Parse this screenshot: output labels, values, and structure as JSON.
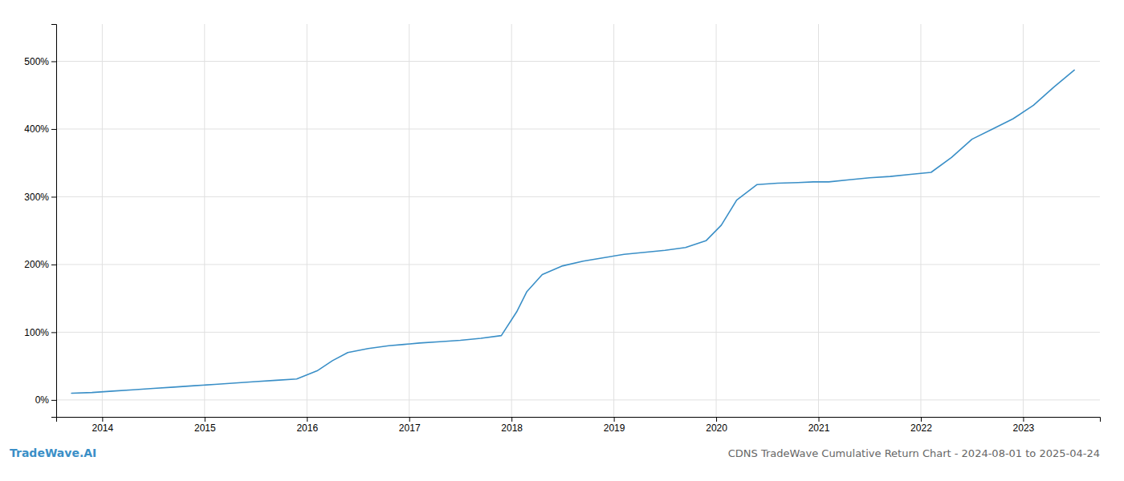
{
  "chart_data": {
    "type": "line",
    "title": "CDNS TradeWave Cumulative Return Chart - 2024-08-01 to 2025-04-24",
    "annotations": [
      "TradeWave.AI"
    ],
    "color": "#3a8fc7",
    "grid": true,
    "x": [
      2013.7,
      2013.9,
      2014.1,
      2014.3,
      2014.5,
      2014.7,
      2014.9,
      2015.1,
      2015.3,
      2015.5,
      2015.7,
      2015.9,
      2016.1,
      2016.25,
      2016.4,
      2016.6,
      2016.8,
      2016.95,
      2017.1,
      2017.3,
      2017.5,
      2017.7,
      2017.9,
      2018.05,
      2018.15,
      2018.3,
      2018.5,
      2018.7,
      2018.9,
      2019.1,
      2019.3,
      2019.5,
      2019.7,
      2019.9,
      2020.05,
      2020.2,
      2020.4,
      2020.6,
      2020.8,
      2020.95,
      2021.1,
      2021.3,
      2021.5,
      2021.7,
      2021.9,
      2022.1,
      2022.3,
      2022.5,
      2022.7,
      2022.9,
      2023.1,
      2023.3,
      2023.5
    ],
    "values": [
      10,
      11,
      13,
      15,
      17,
      19,
      21,
      23,
      25,
      27,
      29,
      31,
      43,
      58,
      70,
      76,
      80,
      82,
      84,
      86,
      88,
      91,
      95,
      130,
      160,
      185,
      198,
      205,
      210,
      215,
      218,
      221,
      225,
      235,
      258,
      295,
      318,
      320,
      321,
      322,
      322,
      325,
      328,
      330,
      333,
      336,
      358,
      385,
      400,
      415,
      435,
      462,
      487
    ],
    "xlim": [
      2013.55,
      2023.75
    ],
    "xticks": [
      2014,
      2015,
      2016,
      2017,
      2018,
      2019,
      2020,
      2021,
      2022,
      2023
    ],
    "ylim": [
      -25,
      555
    ],
    "yticks": [
      {
        "value": 0,
        "label": "0%"
      },
      {
        "value": 100,
        "label": "100%"
      },
      {
        "value": 200,
        "label": "200%"
      },
      {
        "value": 300,
        "label": "300%"
      },
      {
        "value": 400,
        "label": "400%"
      },
      {
        "value": 500,
        "label": "500%"
      }
    ]
  }
}
